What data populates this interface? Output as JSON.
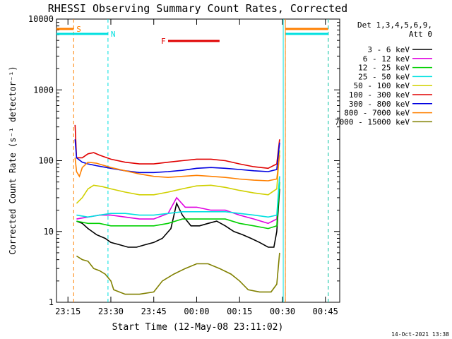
{
  "chart_data": {
    "type": "line",
    "title": "RHESSI Observing Summary Count Rates, Corrected",
    "xlabel": "Start Time (12-May-08 23:11:02)",
    "ylabel": "Corrected Count Rate (s⁻¹ detector⁻¹)",
    "y_scale": "log",
    "ylim": [
      1,
      10000
    ],
    "xlim": [
      "23:11",
      "00:50"
    ],
    "x_ticks": [
      "23:15",
      "23:30",
      "23:45",
      "00:00",
      "00:15",
      "00:30",
      "00:45"
    ],
    "y_ticks": [
      "1",
      "10",
      "100",
      "1000",
      "10000"
    ],
    "legend_header": [
      "Det 1,3,4,5,6,9,",
      "Att 0"
    ],
    "legend_position": "top-right",
    "timestamp": "14-Oct-2021 13:38",
    "series": [
      {
        "name": "3 - 6 keV",
        "color": "#000000",
        "x": [
          "23:18",
          "23:20",
          "23:22",
          "23:25",
          "23:28",
          "23:30",
          "23:33",
          "23:36",
          "23:39",
          "23:42",
          "23:45",
          "23:48",
          "23:51",
          "23:53",
          "23:55",
          "23:58",
          "00:01",
          "00:04",
          "00:07",
          "00:10",
          "00:13",
          "00:16",
          "00:19",
          "00:22",
          "00:25",
          "00:27",
          "00:28",
          "00:29"
        ],
        "y": [
          14,
          13,
          11,
          9,
          8,
          7,
          6.5,
          6,
          6,
          6.5,
          7,
          8,
          11,
          25,
          17,
          12,
          12,
          13,
          14,
          12,
          10,
          9,
          8,
          7,
          6,
          6,
          10,
          40
        ]
      },
      {
        "name": "6 - 12 keV",
        "color": "#e000e0",
        "x": [
          "23:18",
          "23:22",
          "23:26",
          "23:30",
          "23:35",
          "23:40",
          "23:45",
          "23:50",
          "23:53",
          "23:56",
          "00:00",
          "00:05",
          "00:10",
          "00:15",
          "00:20",
          "00:25",
          "00:28",
          "00:29"
        ],
        "y": [
          15,
          16,
          17,
          17,
          16,
          15,
          15,
          18,
          30,
          22,
          22,
          20,
          20,
          17,
          15,
          13,
          15,
          60
        ]
      },
      {
        "name": "12 - 25 keV",
        "color": "#00d000",
        "x": [
          "23:18",
          "23:22",
          "23:26",
          "23:30",
          "23:35",
          "23:40",
          "23:45",
          "23:50",
          "23:55",
          "00:00",
          "00:05",
          "00:10",
          "00:15",
          "00:20",
          "00:25",
          "00:28",
          "00:29"
        ],
        "y": [
          14,
          13,
          13,
          12,
          12,
          12,
          12,
          13,
          15,
          15,
          15,
          15,
          13,
          12,
          11,
          12,
          50
        ]
      },
      {
        "name": "25 - 50 keV",
        "color": "#00e0e0",
        "x": [
          "23:18",
          "23:22",
          "23:26",
          "23:30",
          "23:35",
          "23:40",
          "23:45",
          "23:50",
          "23:55",
          "00:00",
          "00:05",
          "00:10",
          "00:15",
          "00:20",
          "00:25",
          "00:28",
          "00:29"
        ],
        "y": [
          17,
          16,
          17,
          18,
          18,
          17,
          17,
          18,
          19,
          19,
          19,
          19,
          18,
          17,
          16,
          17,
          60
        ]
      },
      {
        "name": "50 - 100 keV",
        "color": "#d0d000",
        "x": [
          "23:18",
          "23:20",
          "23:22",
          "23:24",
          "23:27",
          "23:30",
          "23:35",
          "23:40",
          "23:45",
          "23:50",
          "23:55",
          "00:00",
          "00:05",
          "00:10",
          "00:15",
          "00:20",
          "00:25",
          "00:28",
          "00:29"
        ],
        "y": [
          25,
          30,
          40,
          45,
          43,
          40,
          36,
          33,
          33,
          36,
          40,
          44,
          45,
          42,
          38,
          35,
          33,
          40,
          140
        ]
      },
      {
        "name": "100 - 300 keV",
        "color": "#e00000",
        "x": [
          "23:17.5",
          "23:18",
          "23:20",
          "23:22",
          "23:24",
          "23:26",
          "23:30",
          "23:35",
          "23:40",
          "23:45",
          "23:50",
          "23:55",
          "00:00",
          "00:05",
          "00:10",
          "00:15",
          "00:20",
          "00:25",
          "00:28",
          "00:29"
        ],
        "y": [
          320,
          110,
          110,
          125,
          130,
          120,
          105,
          95,
          90,
          90,
          95,
          100,
          105,
          105,
          100,
          90,
          82,
          78,
          90,
          200
        ]
      },
      {
        "name": "300 - 800 keV",
        "color": "#0000e0",
        "x": [
          "23:17.5",
          "23:18",
          "23:20",
          "23:22",
          "23:25",
          "23:30",
          "23:35",
          "23:40",
          "23:45",
          "23:50",
          "23:55",
          "00:00",
          "00:05",
          "00:10",
          "00:15",
          "00:20",
          "00:25",
          "00:28",
          "00:29"
        ],
        "y": [
          200,
          110,
          95,
          90,
          85,
          78,
          72,
          68,
          68,
          70,
          73,
          78,
          80,
          78,
          75,
          72,
          70,
          75,
          180
        ]
      },
      {
        "name": "800 - 7000 keV",
        "color": "#ff8000",
        "x": [
          "23:17.5",
          "23:18",
          "23:19",
          "23:20",
          "23:22",
          "23:25",
          "23:30",
          "23:35",
          "23:40",
          "23:45",
          "23:50",
          "23:55",
          "00:00",
          "00:05",
          "00:10",
          "00:15",
          "00:20",
          "00:25",
          "00:28",
          "00:29"
        ],
        "y": [
          110,
          70,
          60,
          80,
          95,
          92,
          80,
          72,
          65,
          60,
          58,
          60,
          62,
          60,
          58,
          55,
          53,
          52,
          55,
          120
        ]
      },
      {
        "name": "7000 - 15000 keV",
        "color": "#808000",
        "x": [
          "23:18",
          "23:20",
          "23:22",
          "23:24",
          "23:26",
          "23:28",
          "23:30",
          "23:31",
          "23:35",
          "23:40",
          "23:45",
          "23:48",
          "23:52",
          "23:56",
          "00:00",
          "00:04",
          "00:08",
          "00:12",
          "00:15",
          "00:18",
          "00:22",
          "00:26",
          "00:28",
          "00:29"
        ],
        "y": [
          4.5,
          4,
          3.8,
          3,
          2.8,
          2.5,
          2,
          1.5,
          1.3,
          1.3,
          1.4,
          2,
          2.5,
          3,
          3.5,
          3.5,
          3,
          2.5,
          2,
          1.5,
          1.4,
          1.4,
          1.8,
          5
        ]
      }
    ],
    "annotations": [
      {
        "label": "S",
        "color": "#ff8000",
        "segments": [
          [
            "23:11",
            "23:17"
          ],
          [
            "00:31",
            "00:46"
          ]
        ]
      },
      {
        "label": "N",
        "color": "#00e0e0",
        "segments": [
          [
            "23:11",
            "23:29"
          ],
          [
            "00:31",
            "00:46"
          ]
        ]
      },
      {
        "label": "F",
        "color": "#e00000",
        "segments": [
          [
            "23:50",
            "00:08"
          ]
        ]
      }
    ]
  }
}
